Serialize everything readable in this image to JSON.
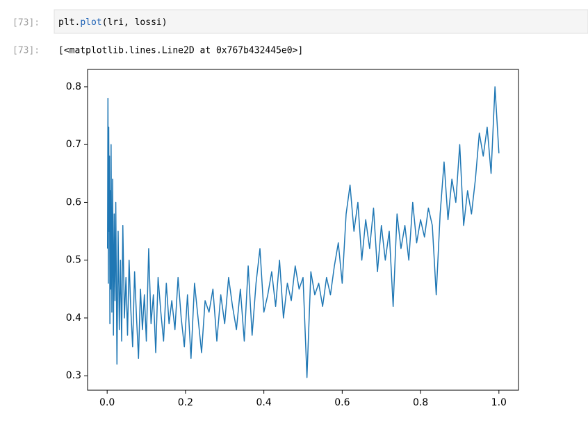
{
  "input": {
    "prompt": "[73]:",
    "code": [
      "plt.",
      "plot",
      "(lri, lossi)"
    ]
  },
  "output": {
    "prompt": "[73]:",
    "text": "[<matplotlib.lines.Line2D at 0x767b432445e0>]"
  },
  "chart_data": {
    "type": "line",
    "color": "#1f77b4",
    "x": [
      0.001,
      0.002,
      0.003,
      0.004,
      0.005,
      0.006,
      0.007,
      0.008,
      0.009,
      0.01,
      0.012,
      0.014,
      0.016,
      0.018,
      0.02,
      0.022,
      0.025,
      0.028,
      0.031,
      0.034,
      0.037,
      0.04,
      0.044,
      0.048,
      0.052,
      0.056,
      0.06,
      0.065,
      0.07,
      0.075,
      0.08,
      0.085,
      0.09,
      0.095,
      0.1,
      0.106,
      0.112,
      0.118,
      0.124,
      0.13,
      0.137,
      0.144,
      0.151,
      0.158,
      0.165,
      0.173,
      0.181,
      0.189,
      0.197,
      0.205,
      0.214,
      0.223,
      0.232,
      0.241,
      0.25,
      0.26,
      0.27,
      0.28,
      0.29,
      0.3,
      0.31,
      0.32,
      0.33,
      0.34,
      0.35,
      0.36,
      0.37,
      0.38,
      0.39,
      0.4,
      0.41,
      0.42,
      0.43,
      0.44,
      0.45,
      0.46,
      0.47,
      0.48,
      0.49,
      0.5,
      0.51,
      0.52,
      0.53,
      0.54,
      0.55,
      0.56,
      0.57,
      0.58,
      0.59,
      0.6,
      0.61,
      0.62,
      0.63,
      0.64,
      0.65,
      0.66,
      0.67,
      0.68,
      0.69,
      0.7,
      0.71,
      0.72,
      0.73,
      0.74,
      0.75,
      0.76,
      0.77,
      0.78,
      0.79,
      0.8,
      0.81,
      0.82,
      0.83,
      0.84,
      0.85,
      0.86,
      0.87,
      0.88,
      0.89,
      0.9,
      0.91,
      0.92,
      0.93,
      0.94,
      0.95,
      0.96,
      0.97,
      0.98,
      0.99,
      1.0
    ],
    "values": [
      0.52,
      0.78,
      0.46,
      0.73,
      0.55,
      0.68,
      0.39,
      0.62,
      0.45,
      0.7,
      0.41,
      0.64,
      0.37,
      0.58,
      0.43,
      0.6,
      0.32,
      0.55,
      0.38,
      0.5,
      0.36,
      0.56,
      0.4,
      0.47,
      0.37,
      0.5,
      0.42,
      0.35,
      0.48,
      0.4,
      0.33,
      0.45,
      0.38,
      0.44,
      0.36,
      0.52,
      0.39,
      0.44,
      0.34,
      0.47,
      0.41,
      0.36,
      0.46,
      0.39,
      0.43,
      0.38,
      0.47,
      0.4,
      0.35,
      0.44,
      0.33,
      0.46,
      0.4,
      0.34,
      0.43,
      0.41,
      0.45,
      0.36,
      0.44,
      0.39,
      0.47,
      0.42,
      0.38,
      0.45,
      0.36,
      0.49,
      0.37,
      0.46,
      0.52,
      0.41,
      0.44,
      0.48,
      0.42,
      0.5,
      0.4,
      0.46,
      0.43,
      0.49,
      0.45,
      0.47,
      0.297,
      0.48,
      0.44,
      0.46,
      0.42,
      0.47,
      0.44,
      0.49,
      0.53,
      0.46,
      0.58,
      0.63,
      0.55,
      0.6,
      0.5,
      0.57,
      0.52,
      0.59,
      0.48,
      0.56,
      0.5,
      0.55,
      0.42,
      0.58,
      0.52,
      0.56,
      0.5,
      0.6,
      0.53,
      0.57,
      0.54,
      0.59,
      0.56,
      0.44,
      0.58,
      0.67,
      0.57,
      0.64,
      0.6,
      0.7,
      0.56,
      0.62,
      0.58,
      0.64,
      0.72,
      0.68,
      0.73,
      0.65,
      0.8,
      0.685
    ],
    "xlim": [
      -0.05,
      1.05
    ],
    "ylim": [
      0.275,
      0.83
    ],
    "xticks": [
      {
        "value": 0,
        "label": "0.0"
      },
      0.2,
      0.4,
      0.6,
      0.8,
      {
        "value": 1,
        "label": "1.0"
      }
    ],
    "yticks": [
      0.3,
      0.4,
      0.5,
      0.6,
      0.7,
      0.8
    ]
  }
}
